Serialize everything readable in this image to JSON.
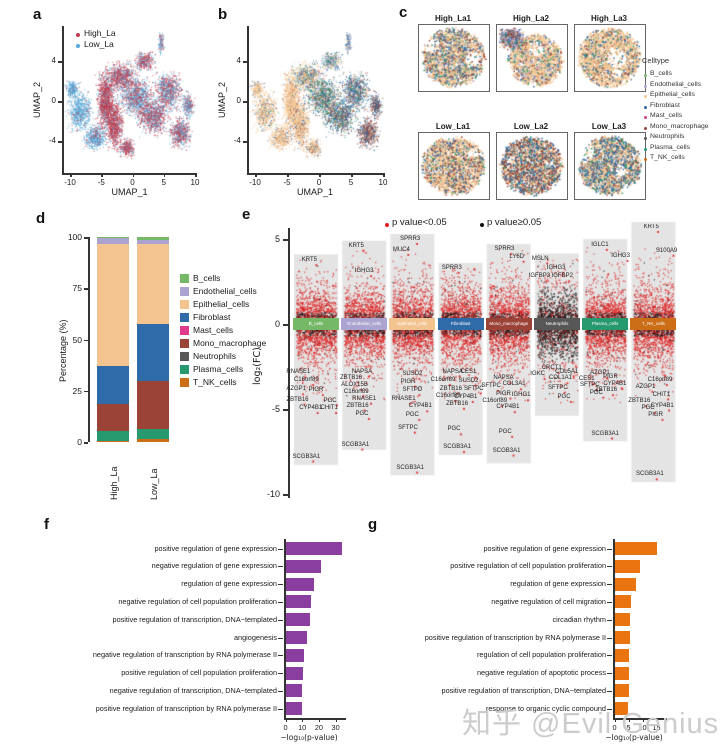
{
  "watermark": {
    "text": "知乎 @Evil Genius",
    "color": "#cccccc"
  },
  "celltypes": [
    {
      "name": "B_cells",
      "color": "#74b868"
    },
    {
      "name": "Endothelial_cells",
      "color": "#aba4d0"
    },
    {
      "name": "Epithelial_cells",
      "color": "#f3c48f"
    },
    {
      "name": "Fibroblast",
      "color": "#2f6ba8"
    },
    {
      "name": "Mast_cells",
      "color": "#e03a8c"
    },
    {
      "name": "Mono_macrophage",
      "color": "#9c4337"
    },
    {
      "name": "Neutrophils",
      "color": "#575757"
    },
    {
      "name": "Plasma_cells",
      "color": "#27996e"
    },
    {
      "name": "T_NK_cells",
      "color": "#cc6d17"
    }
  ],
  "panels": {
    "a": {
      "label": "a",
      "xlabel": "UMAP_1",
      "ylabel": "UMAP_2"
    },
    "b": {
      "label": "b",
      "xlabel": "UMAP_1",
      "ylabel": "UMAP_2"
    },
    "c": {
      "label": "c",
      "legend_title": "Celltype"
    },
    "d": {
      "label": "d",
      "ylabel": "Percentage (%)"
    },
    "e": {
      "label": "e",
      "ylabel": "log₂(FC)"
    },
    "f": {
      "label": "f",
      "xlabel": "−log₁₀(p-value)"
    },
    "g": {
      "label": "g",
      "xlabel": "−log₁₀(p-value)"
    }
  },
  "chart_data": [
    {
      "id": "a",
      "type": "scatter",
      "xlabel": "UMAP_1",
      "ylabel": "UMAP_2",
      "xticks": [
        -10,
        -5,
        0,
        5,
        10
      ],
      "yticks": [
        4,
        0,
        -4
      ],
      "xlim": [
        -11,
        10.5
      ],
      "ylim": [
        -7.5,
        7.5
      ],
      "legend_position": "top-left",
      "series": [
        {
          "name": "High_La",
          "color": "#c0394b"
        },
        {
          "name": "Low_La",
          "color": "#56a9d8"
        }
      ]
    },
    {
      "id": "b",
      "type": "scatter",
      "xlabel": "UMAP_1",
      "ylabel": "UMAP_2",
      "xticks": [
        -10,
        -5,
        0,
        5,
        10
      ],
      "yticks": [
        4,
        0,
        -4
      ],
      "series_from": "celltypes"
    },
    {
      "id": "c",
      "type": "scatter",
      "subplots": [
        "High_La1",
        "High_La2",
        "High_La3",
        "Low_La1",
        "Low_La2",
        "Low_La3"
      ],
      "legend_title": "Celltype",
      "legend_from": "celltypes"
    },
    {
      "id": "d",
      "type": "bar",
      "stacked": true,
      "categories": [
        "High_La",
        "Low_La"
      ],
      "ylabel": "Percentage (%)",
      "yticks": [
        0,
        25,
        50,
        75,
        100
      ],
      "ylim": [
        0,
        100
      ],
      "series": [
        {
          "name": "T_NK_cells",
          "values": [
            0.7,
            1.5
          ]
        },
        {
          "name": "Plasma_cells",
          "values": [
            4.8,
            5.0
          ]
        },
        {
          "name": "Mono_macrophage",
          "values": [
            13.0,
            23.5
          ]
        },
        {
          "name": "Fibroblast",
          "values": [
            18.5,
            27.5
          ]
        },
        {
          "name": "Epithelial_cells",
          "values": [
            59.5,
            39.0
          ]
        },
        {
          "name": "Endothelial_cells",
          "values": [
            3.0,
            2.0
          ]
        },
        {
          "name": "B_cells",
          "values": [
            0.5,
            1.5
          ]
        },
        {
          "name": "Mast_cells",
          "values": [
            0.0,
            0.0
          ]
        },
        {
          "name": "Neutrophils",
          "values": [
            0.0,
            0.0
          ]
        }
      ],
      "legend": [
        "B_cells",
        "Endothelial_cells",
        "Epithelial_cells",
        "Fibroblast",
        "Mast_cells",
        "Mono_macrophage",
        "Neutrophils",
        "Plasma_cells",
        "T_NK_cells"
      ]
    },
    {
      "id": "e",
      "type": "scatter",
      "ylabel": "log₂(FC)",
      "yticks": [
        5,
        0,
        -5,
        -10
      ],
      "ylim": [
        -10,
        6.3
      ],
      "legend": [
        {
          "label": "p value<0.05",
          "color": "#e01f1f"
        },
        {
          "label": "p value≥0.05",
          "color": "#111111"
        }
      ],
      "groups": [
        {
          "name": "B_cells",
          "band": [
            4.1,
            -8.3
          ],
          "top": [
            [
              "KRT5",
              0.35,
              3.75
            ]
          ],
          "bottom": [
            [
              "RNASE1",
              0.1,
              -2.85
            ],
            [
              "C16orf89",
              0.28,
              -3.3
            ],
            [
              "AZGP1",
              0.05,
              -3.85
            ],
            [
              "PIGR",
              0.5,
              -3.9
            ],
            [
              "ZBTB16",
              0.08,
              -4.45
            ],
            [
              "CYP4B1",
              0.38,
              -4.95
            ],
            [
              "PGC",
              0.82,
              -4.5
            ],
            [
              "CHIT1",
              0.8,
              -4.95
            ],
            [
              "SCGB3A1",
              0.28,
              -7.8
            ]
          ]
        },
        {
          "name": "Endothelial_cells",
          "band": [
            4.9,
            -7.4
          ],
          "top": [
            [
              "KRT5",
              0.32,
              4.6
            ],
            [
              "IGHG3",
              0.5,
              3.1
            ]
          ],
          "bottom": [
            [
              "NAPSA",
              0.45,
              -2.8
            ],
            [
              "ZBTB16",
              0.2,
              -3.15
            ],
            [
              "ALOX15B",
              0.28,
              -3.6
            ],
            [
              "C16orf89",
              0.32,
              -4.0
            ],
            [
              "RNASE1",
              0.5,
              -4.4
            ],
            [
              "ZBTB16",
              0.35,
              -4.8
            ],
            [
              "PGC",
              0.45,
              -5.3
            ],
            [
              "SCGB3A1",
              0.3,
              -7.1
            ]
          ]
        },
        {
          "name": "Epithelial_cells",
          "band": [
            5.3,
            -8.9
          ],
          "top": [
            [
              "SPRR3",
              0.45,
              5.0
            ],
            [
              "MUC4",
              0.25,
              4.35
            ]
          ],
          "bottom": [
            [
              "SUSD2",
              0.5,
              -2.95
            ],
            [
              "PIGR",
              0.4,
              -3.4
            ],
            [
              "SFTPD",
              0.5,
              -3.9
            ],
            [
              "RNASE1",
              0.3,
              -4.4
            ],
            [
              "CYP4B1",
              0.68,
              -4.85
            ],
            [
              "PGC",
              0.5,
              -5.35
            ],
            [
              "SFTPC",
              0.4,
              -6.1
            ],
            [
              "SCGB3A1",
              0.45,
              -8.45
            ]
          ]
        },
        {
          "name": "Fibroblast",
          "band": [
            3.6,
            -7.7
          ],
          "top": [
            [
              "SPRR3",
              0.3,
              3.3
            ]
          ],
          "bottom": [
            [
              "NAPSA",
              0.32,
              -2.8
            ],
            [
              "CES1",
              0.68,
              -2.85
            ],
            [
              "C16orf89",
              0.1,
              -3.3
            ],
            [
              "SUSD2",
              0.68,
              -3.35
            ],
            [
              "ZBTB16",
              0.28,
              -3.8
            ],
            [
              "SFTPC",
              0.8,
              -3.8
            ],
            [
              "C16orf89",
              0.22,
              -4.25
            ],
            [
              "CYP4B1",
              0.62,
              -4.3
            ],
            [
              "ZBTB16",
              0.42,
              -4.7
            ],
            [
              "PGC",
              0.35,
              -6.2
            ],
            [
              "SCGB3A1",
              0.42,
              -7.25
            ]
          ]
        },
        {
          "name": "Mono_macrophage",
          "band": [
            4.7,
            -8.2
          ],
          "top": [
            [
              "SPRR3",
              0.4,
              4.4
            ],
            [
              "LY6D",
              0.68,
              3.95
            ]
          ],
          "bottom": [
            [
              "NAPSA",
              0.38,
              -3.2
            ],
            [
              "COL3A1",
              0.62,
              -3.55
            ],
            [
              "SFTPC",
              0.1,
              -3.65
            ],
            [
              "PIGR",
              0.38,
              -4.1
            ],
            [
              "IGHG1",
              0.78,
              -4.2
            ],
            [
              "C16orf89",
              0.18,
              -4.55
            ],
            [
              "CYP4B1",
              0.48,
              -4.9
            ],
            [
              "PGC",
              0.42,
              -6.35
            ],
            [
              "SCGB3A1",
              0.45,
              -7.45
            ]
          ]
        },
        {
          "name": "Neutrophils",
          "band": [
            4.15,
            -5.4
          ],
          "top": [
            [
              "MSLN",
              0.12,
              3.85
            ],
            [
              "IGHG3",
              0.48,
              3.3
            ],
            [
              "IGFBP3",
              0.1,
              2.8
            ],
            [
              "IGFBP2",
              0.62,
              2.8
            ]
          ],
          "bottom": [
            [
              "CRCT1",
              0.38,
              -2.6
            ],
            [
              "COL5A1",
              0.72,
              -2.8
            ],
            [
              "IGKC",
              0.06,
              -2.95
            ],
            [
              "COL1A1",
              0.58,
              -3.2
            ],
            [
              "SFTPC",
              0.52,
              -3.75
            ],
            [
              "PGC",
              0.66,
              -4.3
            ]
          ]
        },
        {
          "name": "Plasma_cells",
          "band": [
            5.0,
            -6.9
          ],
          "top": [
            [
              "IGLC1",
              0.38,
              4.65
            ],
            [
              "IGHG3",
              0.85,
              4.0
            ]
          ],
          "bottom": [
            [
              "AZGP1",
              0.38,
              -2.9
            ],
            [
              "PIGR",
              0.62,
              -3.1
            ],
            [
              "CES1",
              0.08,
              -3.25
            ],
            [
              "CYP4B1",
              0.72,
              -3.5
            ],
            [
              "SFTPC",
              0.15,
              -3.6
            ],
            [
              "ZBTB16",
              0.52,
              -3.9
            ],
            [
              "PGC",
              0.3,
              -4.05
            ],
            [
              "SCGB3A1",
              0.5,
              -6.45
            ]
          ]
        },
        {
          "name": "T_NK_cells",
          "band": [
            6.0,
            -9.3
          ],
          "top": [
            [
              "KRT5",
              0.45,
              5.7
            ],
            [
              "S100A9",
              0.8,
              4.3
            ]
          ],
          "bottom": [
            [
              "C16orf89",
              0.65,
              -3.3
            ],
            [
              "AZGP1",
              0.32,
              -3.7
            ],
            [
              "CHIT1",
              0.68,
              -4.15
            ],
            [
              "ZBTB16",
              0.18,
              -4.55
            ],
            [
              "CYP4B1",
              0.7,
              -4.8
            ],
            [
              "PGC",
              0.38,
              -4.95
            ],
            [
              "PIGR",
              0.55,
              -5.35
            ],
            [
              "SCGB3A1",
              0.42,
              -8.85
            ]
          ]
        }
      ]
    },
    {
      "id": "f",
      "type": "bar",
      "orientation": "horizontal",
      "color": "#8a3fa0",
      "xlabel": "−log₁₀(p-value)",
      "xticks": [
        0,
        10,
        20,
        30
      ],
      "xlim": [
        0,
        36
      ],
      "categories": [
        "positive regulation of gene expression",
        "negative regulation of gene expression",
        "regulation of gene expression",
        "negative regulation of cell population proliferation",
        "positive regulation of transcription, DNA−templated",
        "angiogenesis",
        "negative regulation of transcription by RNA polymerase II",
        "positive regulation of cell population proliferation",
        "negative regulation of transcription, DNA−templated",
        "positive regulation of transcription by RNA polymerase II"
      ],
      "values": [
        34,
        21,
        17,
        15,
        14.5,
        13,
        11,
        10.5,
        10,
        10
      ]
    },
    {
      "id": "g",
      "type": "bar",
      "orientation": "horizontal",
      "color": "#e97410",
      "xlabel": "−log₁₀(p-value)",
      "xticks": [
        0,
        5,
        10,
        15
      ],
      "xlim": [
        0,
        17
      ],
      "categories": [
        "positive regulation of gene expression",
        "positive regulation of cell population proliferation",
        "regulation of gene expression",
        "negative regulation of cell migration",
        "circadian rhythm",
        "positive regulation of transcription by RNA polymerase II",
        "regulation of cell population proliferation",
        "negative regulation of apoptotic process",
        "positive regulation of transcription, DNA−templated",
        "response to organic cyclic compound"
      ],
      "values": [
        15,
        9,
        7.5,
        6,
        5.5,
        5.5,
        5.2,
        5,
        5,
        4.8
      ]
    }
  ]
}
